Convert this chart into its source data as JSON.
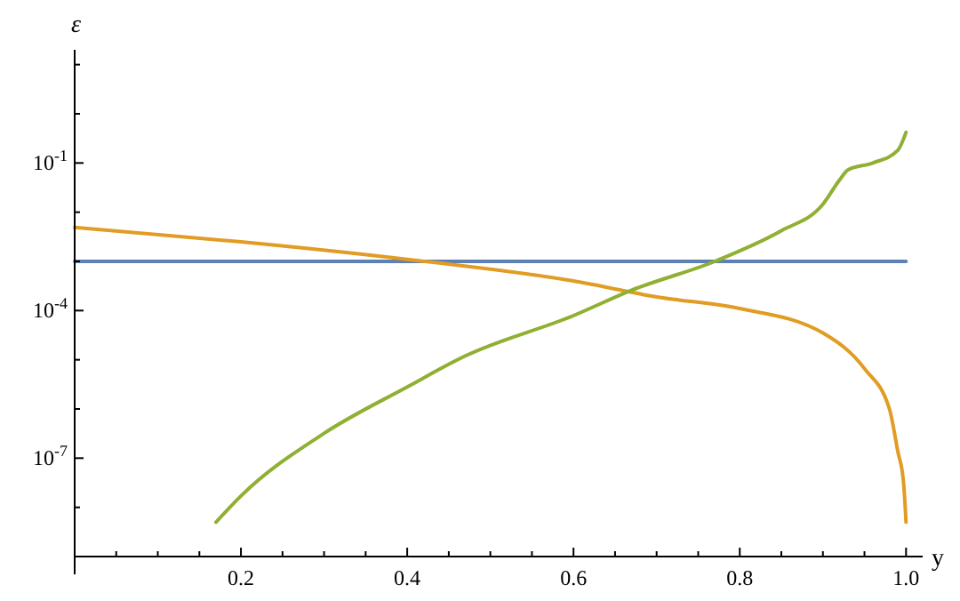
{
  "chart_data": {
    "type": "line",
    "xlabel": "y",
    "ylabel": "ε",
    "log": "y",
    "grid": false,
    "line_style": "solid",
    "xlim": [
      0,
      1.02
    ],
    "ylim": [
      1e-09,
      20
    ],
    "xticks": [
      {
        "value": 0.05,
        "label": null
      },
      {
        "value": 0.1,
        "label": null
      },
      {
        "value": 0.15,
        "label": null
      },
      0.2,
      {
        "value": 0.25,
        "label": null
      },
      {
        "value": 0.3,
        "label": null
      },
      {
        "value": 0.35,
        "label": null
      },
      0.4,
      {
        "value": 0.45,
        "label": null
      },
      {
        "value": 0.5,
        "label": null
      },
      {
        "value": 0.55,
        "label": null
      },
      0.6,
      {
        "value": 0.65,
        "label": null
      },
      {
        "value": 0.7,
        "label": null
      },
      {
        "value": 0.75,
        "label": null
      },
      0.8,
      {
        "value": 0.85,
        "label": null
      },
      {
        "value": 0.9,
        "label": null
      },
      {
        "value": 0.95,
        "label": null
      },
      {
        "value": 1,
        "label": "1.0"
      }
    ],
    "yticks": [
      {
        "value": 1e-09,
        "label": null
      },
      {
        "value": 1e-08,
        "label": null
      },
      {
        "value": 1e-07,
        "label": "10$^{-7}$"
      },
      {
        "value": 1e-06,
        "label": null
      },
      {
        "value": 1e-05,
        "label": null
      },
      {
        "value": 0.0001,
        "label": "10$^{-4}$"
      },
      {
        "value": 0.001,
        "label": null
      },
      {
        "value": 0.01,
        "label": null
      },
      {
        "value": 0.1,
        "label": "10$^{-1}$"
      },
      {
        "value": 1,
        "label": null
      },
      {
        "value": 10,
        "label": null
      }
    ],
    "series": [
      {
        "color": "#5e81b5",
        "x": [
          0,
          1
        ],
        "values": [
          0.001,
          0.001
        ]
      },
      {
        "color": "#e19c24",
        "x": [
          0,
          0.2,
          0.4,
          0.6,
          0.7,
          0.8,
          0.9,
          0.95,
          0.98,
          0.99,
          0.997,
          1.0
        ],
        "values": [
          0.0049,
          0.0025,
          0.0011,
          0.0004,
          0.00019,
          0.00011,
          3.5e-05,
          6.6e-06,
          1e-06,
          1.4e-07,
          3.2e-08,
          5e-09
        ]
      },
      {
        "color": "#8fb032",
        "x": [
          0.17,
          0.2,
          0.3,
          0.4,
          0.47,
          0.6,
          0.67,
          0.77,
          0.85,
          0.9,
          0.92,
          0.93,
          0.96,
          0.99,
          1.0
        ],
        "values": [
          5e-09,
          1.7e-08,
          3.2e-07,
          2.8e-06,
          1.2e-05,
          7.9e-05,
          0.00026,
          0.001,
          0.0042,
          0.0145,
          0.045,
          0.072,
          0.1,
          0.18,
          0.42
        ]
      }
    ]
  }
}
